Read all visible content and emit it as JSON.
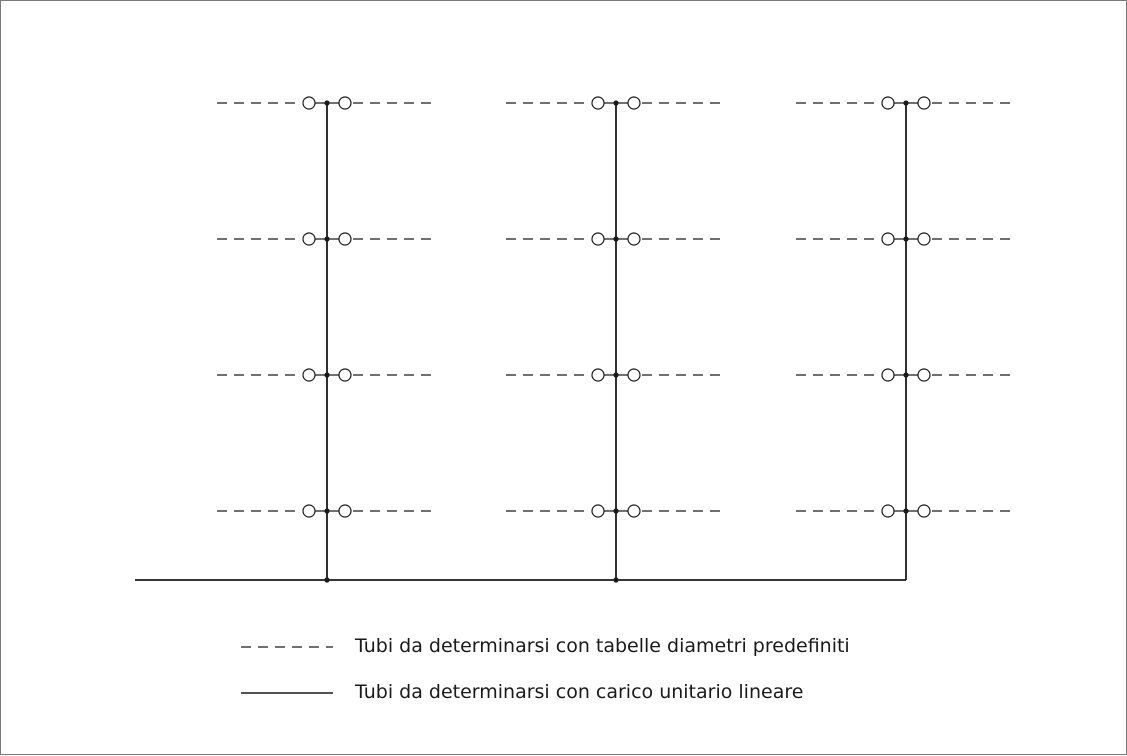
{
  "diagram": {
    "line_color": "#1a1a1a",
    "frame_color": "#7a7a7a",
    "columns": 3,
    "floors_per_column": 4
  },
  "legend": {
    "dashed": {
      "icon": "dashed-line-icon",
      "label": "Tubi da determinarsi con tabelle diametri predefiniti"
    },
    "solid": {
      "icon": "solid-line-icon",
      "label": "Tubi da determinarsi con carico unitario lineare"
    }
  }
}
